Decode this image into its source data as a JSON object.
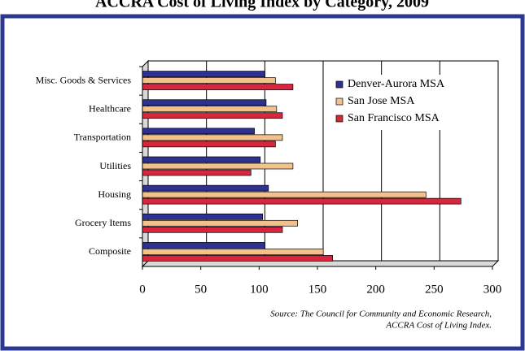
{
  "chart_data": {
    "type": "bar",
    "orientation": "horizontal",
    "title": "ACCRA Cost of Living Index by Category, 2009",
    "categories": [
      "Composite",
      "Grocery Items",
      "Housing",
      "Utilities",
      "Transportation",
      "Healthcare",
      "Misc. Goods & Services"
    ],
    "series": [
      {
        "name": "Denver-Aurora MSA",
        "color": "#2e3192",
        "values": [
          105,
          103,
          108,
          101,
          96,
          106,
          105
        ]
      },
      {
        "name": "San Jose MSA",
        "color": "#f2c18c",
        "values": [
          155,
          133,
          243,
          129,
          120,
          115,
          114
        ]
      },
      {
        "name": "San Francisco MSA",
        "color": "#d7263d",
        "values": [
          163,
          120,
          273,
          93,
          114,
          120,
          129
        ]
      }
    ],
    "xlim": [
      0,
      300
    ],
    "xticks": [
      0,
      50,
      100,
      150,
      200,
      250,
      300
    ],
    "grid": true,
    "legend": "upper right",
    "source": [
      "Source: The Council for Community and Economic Research,",
      "ACCRA Cost of Living Index."
    ]
  }
}
